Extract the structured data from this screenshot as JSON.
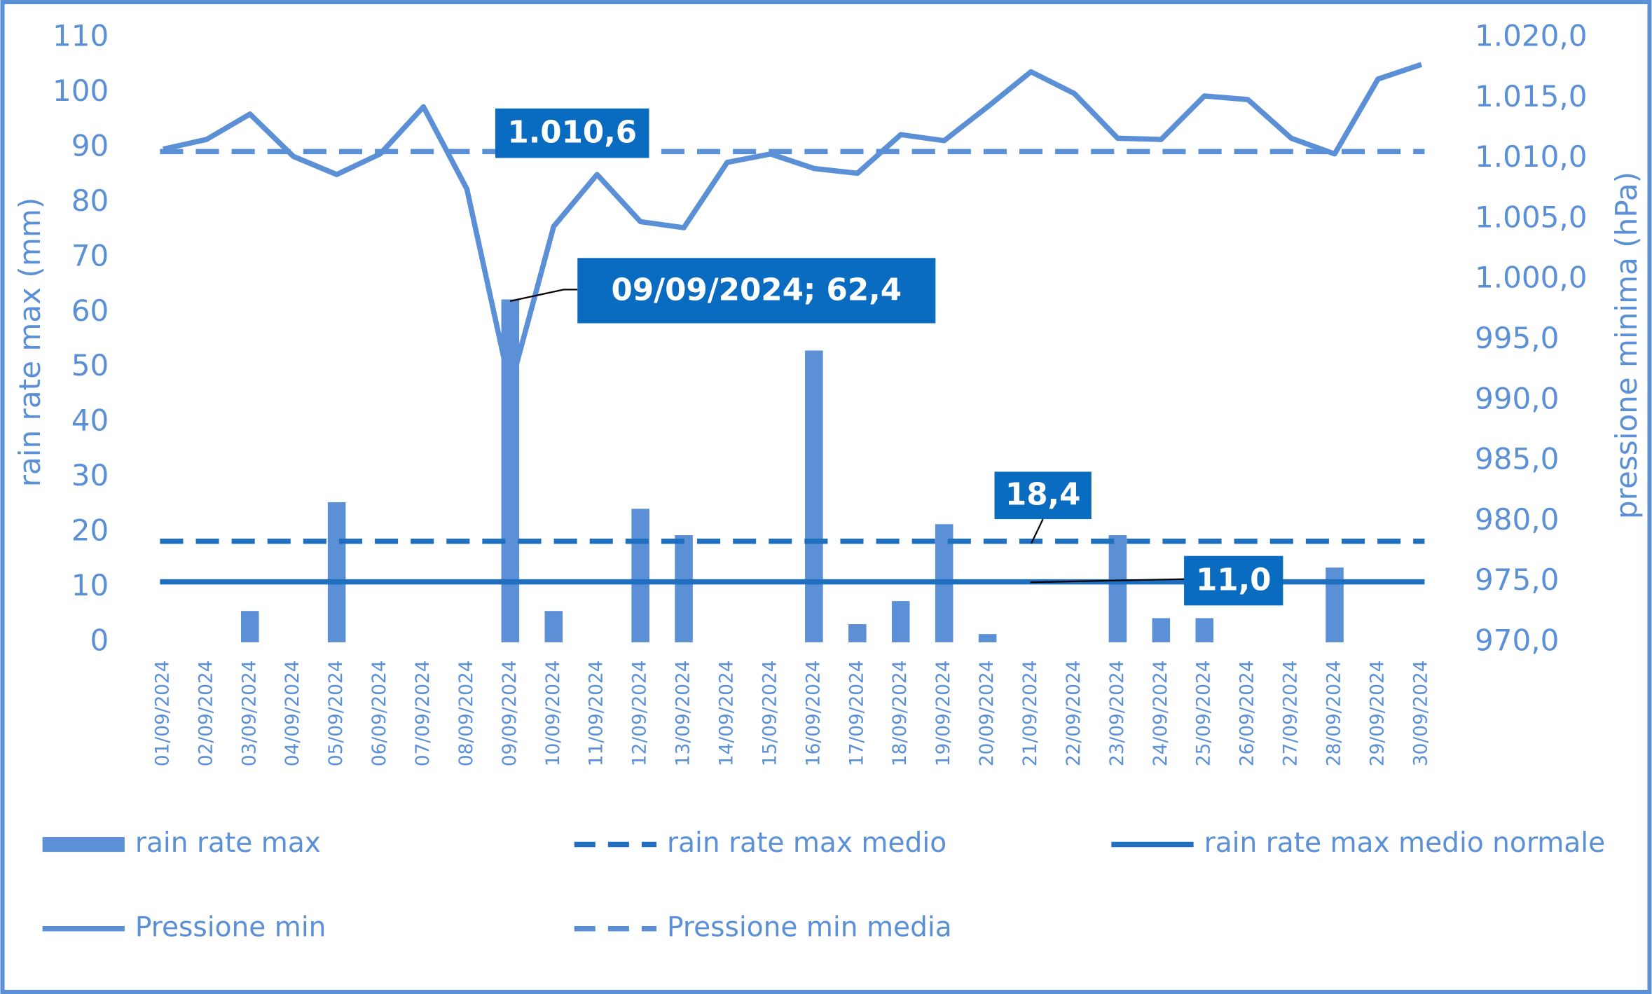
{
  "chart_data": {
    "type": "combo",
    "categories": [
      "01/09/2024",
      "02/09/2024",
      "03/09/2024",
      "04/09/2024",
      "05/09/2024",
      "06/09/2024",
      "07/09/2024",
      "08/09/2024",
      "09/09/2024",
      "10/09/2024",
      "11/09/2024",
      "12/09/2024",
      "13/09/2024",
      "14/09/2024",
      "15/09/2024",
      "16/09/2024",
      "17/09/2024",
      "18/09/2024",
      "19/09/2024",
      "20/09/2024",
      "21/09/2024",
      "22/09/2024",
      "23/09/2024",
      "24/09/2024",
      "25/09/2024",
      "26/09/2024",
      "27/09/2024",
      "28/09/2024",
      "29/09/2024",
      "30/09/2024"
    ],
    "ylabel": "rain rate max (mm)",
    "y2label": "pressione minima (hPa)",
    "ylim": [
      0,
      110
    ],
    "yticks": [
      0,
      10,
      20,
      30,
      40,
      50,
      60,
      70,
      80,
      90,
      100,
      110
    ],
    "y2lim": [
      970,
      1020
    ],
    "y2ticks": [
      {
        "value": 970,
        "label": "970,0"
      },
      {
        "value": 975,
        "label": "975,0"
      },
      {
        "value": 980,
        "label": "980,0"
      },
      {
        "value": 985,
        "label": "985,0"
      },
      {
        "value": 990,
        "label": "990,0"
      },
      {
        "value": 995,
        "label": "995,0"
      },
      {
        "value": 1000,
        "label": "1.000,0"
      },
      {
        "value": 1005,
        "label": "1.005,0"
      },
      {
        "value": 1010,
        "label": "1.010,0"
      },
      {
        "value": 1015,
        "label": "1.015,0"
      },
      {
        "value": 1020,
        "label": "1.020,0"
      }
    ],
    "series": [
      {
        "name": "rain rate max",
        "type": "bar",
        "color": "#5b8fd6",
        "values": [
          0,
          0,
          5.7,
          0,
          25.5,
          0,
          0,
          0,
          62.4,
          5.7,
          0,
          24.3,
          19.5,
          0,
          0,
          53.1,
          3.3,
          7.5,
          21.5,
          1.5,
          0,
          0,
          19.5,
          4.4,
          4.4,
          0,
          0,
          13.6,
          0,
          0
        ]
      },
      {
        "name": "rain rate max medio",
        "type": "hline",
        "dash": true,
        "color": "#1f6fc1",
        "value": 18.4
      },
      {
        "name": "rain rate max medio normale",
        "type": "hline",
        "dash": false,
        "color": "#1f6fc1",
        "value": 11.0
      },
      {
        "name": "Pressione min",
        "type": "line",
        "axis": "y2",
        "color": "#5b8fd6",
        "values": [
          1010.8,
          1011.6,
          1013.7,
          1010.2,
          1008.7,
          1010.4,
          1014.3,
          1007.5,
          991.1,
          1004.4,
          1008.7,
          1004.8,
          1004.3,
          1009.7,
          1010.4,
          1009.2,
          1008.8,
          1012.0,
          1011.5,
          1014.3,
          1017.2,
          1015.4,
          1011.7,
          1011.6,
          1015.2,
          1014.9,
          1011.7,
          1010.4,
          1016.6,
          1017.8
        ]
      },
      {
        "name": "Pressione min media",
        "type": "hline",
        "axis": "y2",
        "dash": true,
        "color": "#5b8fd6",
        "value": 1010.6
      }
    ],
    "annotations": [
      "1.010,6",
      "09/09/2024; 62,4",
      "18,4",
      "11,0"
    ]
  }
}
